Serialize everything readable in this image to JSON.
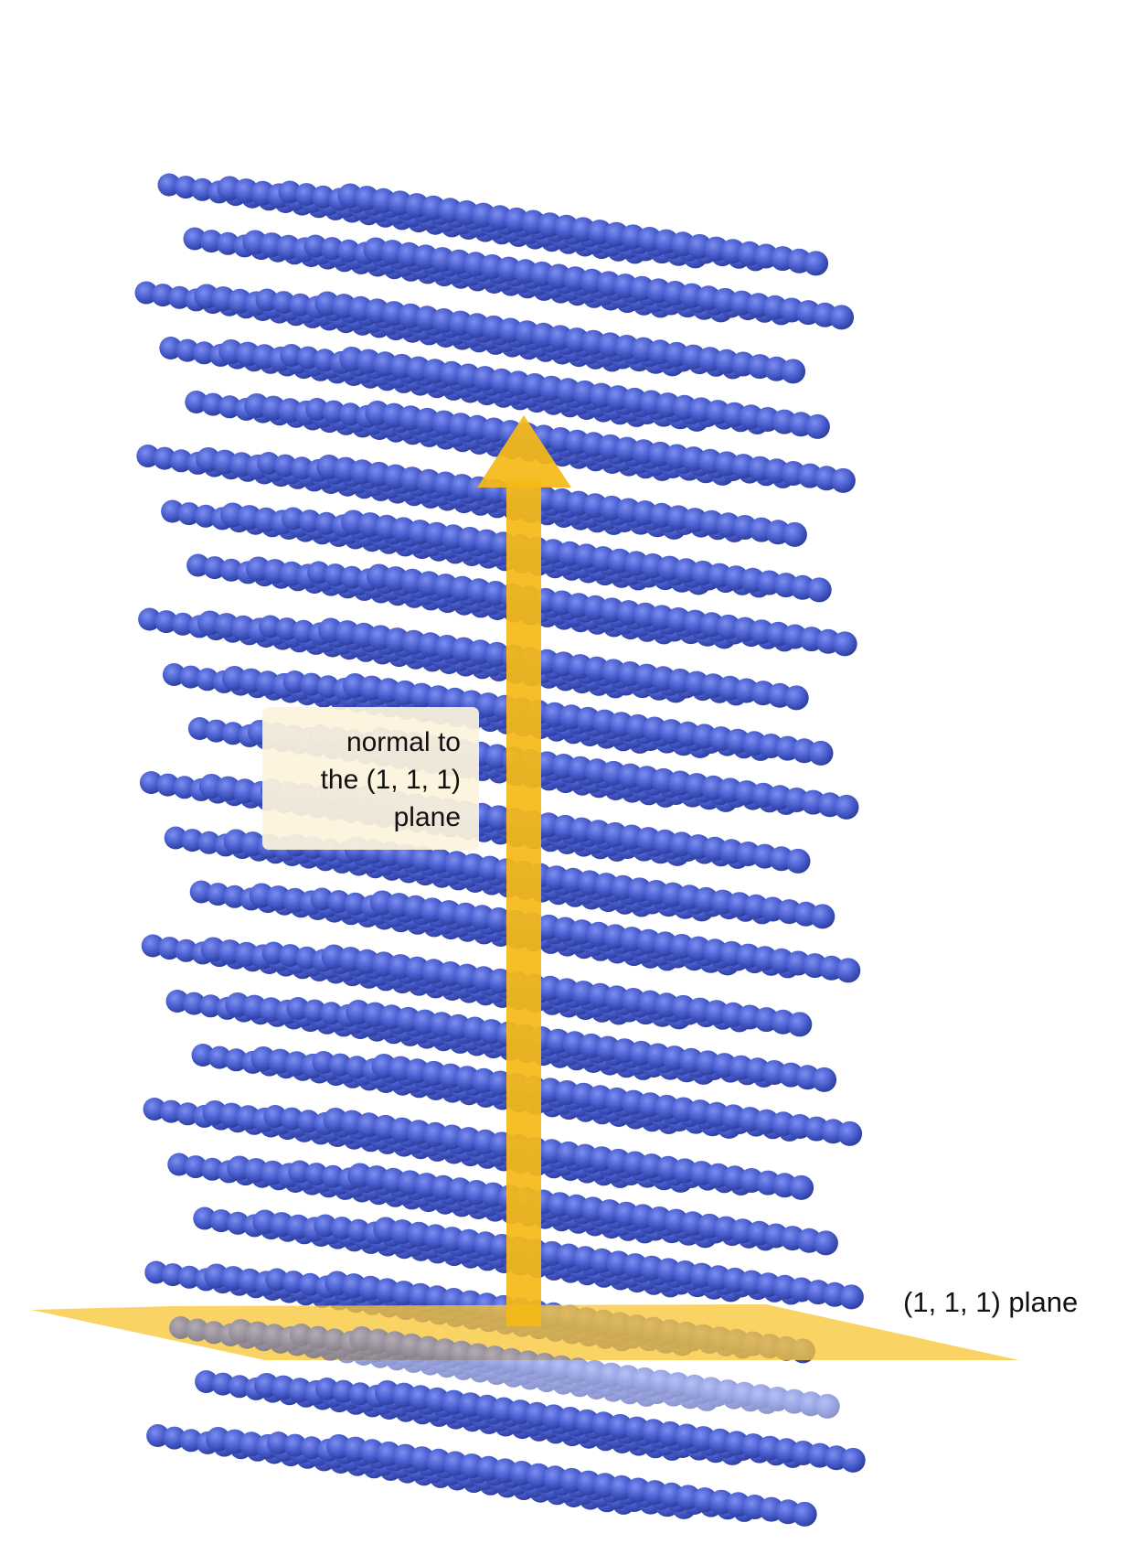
{
  "labels": {
    "normal_lines": [
      "normal to",
      "the (1, 1, 1)",
      "plane"
    ],
    "plane": "(1, 1, 1) plane"
  },
  "colors": {
    "atom": "#4a5fcf",
    "atom_highlight": "#7d8ef0",
    "atom_shadow": "#2a3a9a",
    "arrow": "#f5b918",
    "plane": "#f9c63a",
    "label_box": "#fcf3dc"
  }
}
